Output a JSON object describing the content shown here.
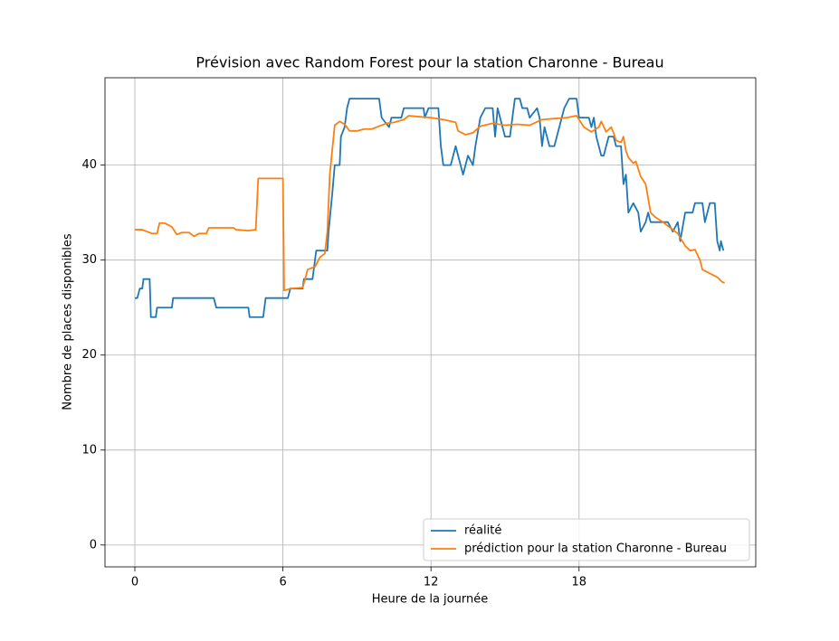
{
  "chart_data": {
    "type": "line",
    "title": "Prévision avec Random Forest pour la station Charonne - Bureau",
    "x_label": "Heure de la journée",
    "y_label": "Nombre de places disponibles",
    "xlim": [
      -1.21,
      25.16
    ],
    "xticks": [
      0,
      6,
      12,
      18
    ],
    "ylim": [
      -2.3,
      49.2
    ],
    "yticks": [
      0,
      10,
      20,
      30,
      40
    ],
    "grid": true,
    "legend": "lower right",
    "series": [
      {
        "name": "réalité",
        "color": "#1f77b4",
        "x": [
          0,
          0.1,
          0.2,
          0.3,
          0.35,
          0.6,
          0.65,
          0.85,
          0.9,
          1.5,
          1.55,
          3.2,
          3.3,
          4.6,
          4.65,
          5.2,
          5.3,
          6.2,
          6.3,
          6.8,
          6.85,
          7.2,
          7.3,
          7.35,
          7.8,
          7.85,
          8.0,
          8.1,
          8.3,
          8.35,
          8.5,
          8.6,
          8.7,
          9.9,
          10.0,
          10.3,
          10.4,
          10.8,
          10.9,
          11.7,
          11.75,
          11.9,
          12.3,
          12.4,
          12.5,
          12.8,
          13.0,
          13.1,
          13.3,
          13.5,
          13.7,
          13.8,
          14.0,
          14.2,
          14.5,
          14.6,
          14.7,
          14.8,
          15.0,
          15.2,
          15.4,
          15.6,
          15.7,
          15.9,
          16.0,
          16.3,
          16.4,
          16.5,
          16.6,
          16.7,
          16.8,
          17.0,
          17.2,
          17.4,
          17.6,
          17.9,
          18.0,
          18.4,
          18.5,
          18.6,
          18.7,
          18.9,
          19.0,
          19.2,
          19.4,
          19.5,
          19.7,
          19.8,
          19.9,
          20.0,
          20.2,
          20.4,
          20.5,
          20.7,
          20.8,
          20.9,
          21.0,
          21.6,
          21.8,
          22.0,
          22.1,
          22.3,
          22.6,
          22.7,
          23.0,
          23.1,
          23.3,
          23.5,
          23.6,
          23.7,
          23.75,
          23.85
        ],
        "values": [
          26,
          26,
          27,
          27,
          28,
          28,
          24,
          24,
          25,
          25,
          26,
          26,
          25,
          25,
          24,
          24,
          26,
          26,
          27,
          27,
          28,
          28,
          30,
          31,
          31,
          33,
          37,
          40,
          40,
          43,
          44,
          46,
          47,
          47,
          45,
          44,
          45,
          45,
          46,
          46,
          45,
          46,
          46,
          42,
          40,
          40,
          42,
          41,
          39,
          41,
          40,
          42,
          45,
          46,
          46,
          43,
          46,
          45,
          43,
          43,
          47,
          47,
          46,
          46,
          45,
          46,
          45,
          42,
          44,
          43,
          42,
          42,
          44,
          46,
          47,
          47,
          45,
          45,
          44,
          45,
          43,
          41,
          41,
          43,
          43,
          42,
          42,
          38,
          39,
          35,
          36,
          35,
          33,
          34,
          35,
          34,
          34,
          34,
          33,
          34,
          32,
          35,
          35,
          36,
          36,
          34,
          36,
          36,
          32,
          31,
          32,
          31
        ]
      },
      {
        "name": "prédiction pour la station Charonne - Bureau",
        "color": "#ff7f0e",
        "x": [
          0,
          0.3,
          0.5,
          0.7,
          0.9,
          1.0,
          1.2,
          1.5,
          1.7,
          1.9,
          2.2,
          2.4,
          2.6,
          2.9,
          3.0,
          3.5,
          4.0,
          4.1,
          4.6,
          4.9,
          5.0,
          5.5,
          6.0,
          6.05,
          6.3,
          6.8,
          6.9,
          7.0,
          7.3,
          7.5,
          7.7,
          7.8,
          7.9,
          8.1,
          8.3,
          8.5,
          8.7,
          9.0,
          9.3,
          9.6,
          9.9,
          10.2,
          10.5,
          10.9,
          11.1,
          11.5,
          12.0,
          12.5,
          13.0,
          13.1,
          13.4,
          13.7,
          14.0,
          14.5,
          15.0,
          15.5,
          16.0,
          16.5,
          17.0,
          17.5,
          17.9,
          18.0,
          18.2,
          18.5,
          18.8,
          18.9,
          19.1,
          19.3,
          19.4,
          19.5,
          19.7,
          19.8,
          19.9,
          20.0,
          20.2,
          20.3,
          20.5,
          20.7,
          20.8,
          20.9,
          21.1,
          21.4,
          21.8,
          22.0,
          22.3,
          22.5,
          22.7,
          22.9,
          23.0,
          23.3,
          23.6,
          23.8,
          23.9
        ],
        "values": [
          33.2,
          33.2,
          33,
          32.8,
          32.8,
          33.9,
          33.9,
          33.5,
          32.7,
          32.9,
          32.9,
          32.5,
          32.8,
          32.8,
          33.4,
          33.4,
          33.4,
          33.2,
          33.1,
          33.2,
          38.6,
          38.6,
          38.6,
          26.8,
          27,
          27.1,
          28,
          29,
          29.3,
          30.3,
          30.7,
          33,
          39,
          44.2,
          44.6,
          44.3,
          43.6,
          43.6,
          43.8,
          43.8,
          44.1,
          44.4,
          44.5,
          44.8,
          45.2,
          45.1,
          45,
          44.8,
          44.5,
          43.6,
          43.2,
          43.4,
          44.1,
          44.4,
          44.2,
          44.3,
          44.2,
          44.8,
          44.9,
          45,
          45.2,
          44.8,
          44,
          43.5,
          44,
          44.6,
          43.5,
          44,
          43.4,
          42.6,
          42.4,
          43,
          41.5,
          40.8,
          40.2,
          40.4,
          38.8,
          38,
          36.5,
          35,
          34.5,
          34,
          33.2,
          32.8,
          31.5,
          31,
          31.1,
          30,
          29,
          28.6,
          28.2,
          27.7,
          27.6
        ]
      }
    ]
  }
}
